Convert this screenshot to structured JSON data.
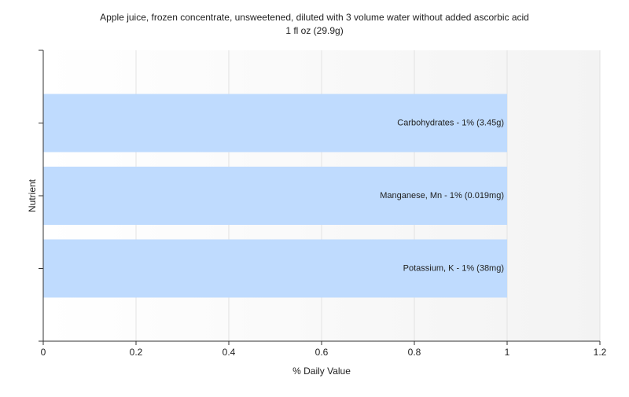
{
  "chart_data": {
    "type": "bar",
    "orientation": "horizontal",
    "title": "Apple juice, frozen concentrate, unsweetened, diluted with 3 volume water without added ascorbic acid",
    "subtitle": "1 fl oz (29.9g)",
    "x_label": "% Daily Value",
    "y_label": "Nutrient",
    "values": [
      1,
      1,
      1
    ],
    "value_labels": [
      "Carbohydrates - 1% (3.45g)",
      "Manganese, Mn - 1% (0.019mg)",
      "Potassium, K - 1% (38mg)"
    ],
    "color": "#bfdbfe",
    "xlim": [
      0,
      1.2
    ],
    "xticks": [
      0,
      0.2,
      0.4,
      0.6,
      0.8,
      1,
      1.2
    ],
    "grid": true
  }
}
